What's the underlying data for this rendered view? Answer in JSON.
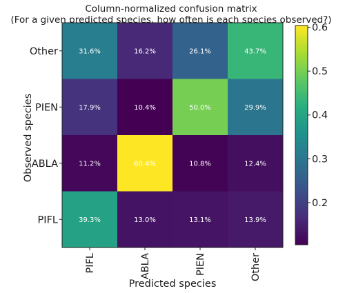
{
  "chart_data": {
    "type": "heatmap",
    "title": "Column-normalized confusion matrix",
    "subtitle": "(For a given predicted species, how often is each species observed?)",
    "xlabel": "Predicted species",
    "ylabel": "Observed species",
    "x_categories": [
      "PIFL",
      "ABLA",
      "PIEN",
      "Other"
    ],
    "y_categories": [
      "Other",
      "PIEN",
      "ABLA",
      "PIFL"
    ],
    "values": [
      [
        0.316,
        0.162,
        0.261,
        0.437
      ],
      [
        0.179,
        0.104,
        0.5,
        0.299
      ],
      [
        0.112,
        0.604,
        0.108,
        0.124
      ],
      [
        0.393,
        0.13,
        0.131,
        0.139
      ]
    ],
    "cell_labels": [
      [
        "31.6%",
        "16.2%",
        "26.1%",
        "43.7%"
      ],
      [
        "17.9%",
        "10.4%",
        "50.0%",
        "29.9%"
      ],
      [
        "11.2%",
        "60.4%",
        "10.8%",
        "12.4%"
      ],
      [
        "39.3%",
        "13.0%",
        "13.1%",
        "13.9%"
      ]
    ],
    "colormap": "viridis",
    "color_range": [
      0.104,
      0.604
    ],
    "colorbar_ticks": [
      0.2,
      0.3,
      0.4,
      0.5,
      0.6
    ],
    "colorbar_tick_labels": [
      "0.2",
      "0.3",
      "0.4",
      "0.5",
      "0.6"
    ],
    "grid": false
  }
}
